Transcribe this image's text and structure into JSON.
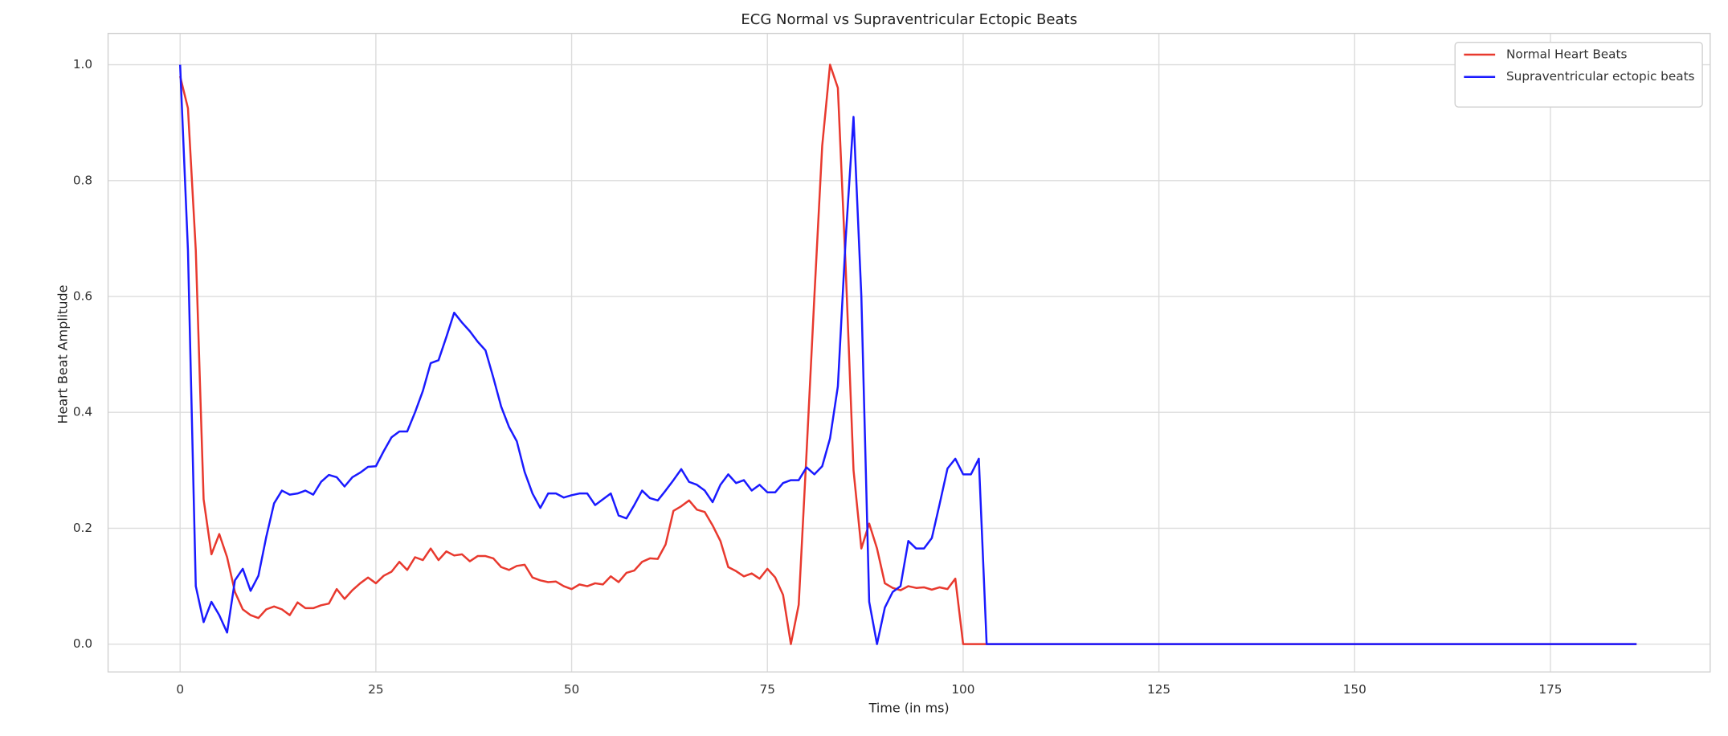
{
  "chart_data": {
    "type": "line",
    "title": "ECG Normal vs Supraventricular Ectopic Beats",
    "xlabel": "Time (in ms)",
    "ylabel": "Heart Beat Amplitude",
    "x": [
      0,
      1,
      2,
      3,
      4,
      5,
      6,
      7,
      8,
      9,
      10,
      11,
      12,
      13,
      14,
      15,
      16,
      17,
      18,
      19,
      20,
      21,
      22,
      23,
      24,
      25,
      26,
      27,
      28,
      29,
      30,
      31,
      32,
      33,
      34,
      35,
      36,
      37,
      38,
      39,
      40,
      41,
      42,
      43,
      44,
      45,
      46,
      47,
      48,
      49,
      50,
      51,
      52,
      53,
      54,
      55,
      56,
      57,
      58,
      59,
      60,
      61,
      62,
      63,
      64,
      65,
      66,
      67,
      68,
      69,
      70,
      71,
      72,
      73,
      74,
      75,
      76,
      77,
      78,
      79,
      80,
      81,
      82,
      83,
      84,
      85,
      86,
      87,
      88,
      89,
      90,
      91,
      92,
      93,
      94,
      95,
      96,
      97,
      98,
      99,
      100,
      101,
      102,
      103,
      104,
      105,
      106,
      107,
      108,
      109,
      110,
      111,
      112,
      113,
      114,
      115,
      116,
      117,
      118,
      119,
      120,
      121,
      122,
      123,
      124,
      125,
      126,
      127,
      128,
      129,
      130,
      131,
      132,
      133,
      134,
      135,
      136,
      137,
      138,
      139,
      140,
      141,
      142,
      143,
      144,
      145,
      146,
      147,
      148,
      149,
      150,
      151,
      152,
      153,
      154,
      155,
      156,
      157,
      158,
      159,
      160,
      161,
      162,
      163,
      164,
      165,
      166,
      167,
      168,
      169,
      170,
      171,
      172,
      173,
      174,
      175,
      176,
      177,
      178,
      179,
      180,
      181,
      182,
      183,
      184,
      185,
      186
    ],
    "series": [
      {
        "name": "Normal Heart Beats",
        "color": "#e8392e",
        "values": [
          0.98,
          0.925,
          0.68,
          0.25,
          0.155,
          0.19,
          0.15,
          0.09,
          0.06,
          0.05,
          0.045,
          0.06,
          0.065,
          0.06,
          0.05,
          0.072,
          0.062,
          0.062,
          0.067,
          0.07,
          0.095,
          0.078,
          0.093,
          0.105,
          0.115,
          0.105,
          0.118,
          0.125,
          0.142,
          0.128,
          0.15,
          0.145,
          0.165,
          0.145,
          0.16,
          0.153,
          0.155,
          0.143,
          0.152,
          0.152,
          0.148,
          0.133,
          0.128,
          0.135,
          0.137,
          0.115,
          0.11,
          0.107,
          0.108,
          0.1,
          0.095,
          0.103,
          0.1,
          0.105,
          0.103,
          0.117,
          0.107,
          0.123,
          0.127,
          0.142,
          0.148,
          0.147,
          0.172,
          0.23,
          0.238,
          0.248,
          0.232,
          0.228,
          0.205,
          0.178,
          0.133,
          0.126,
          0.117,
          0.122,
          0.113,
          0.13,
          0.115,
          0.085,
          0.0,
          0.068,
          0.33,
          0.6,
          0.86,
          1.0,
          0.96,
          0.65,
          0.3,
          0.165,
          0.208,
          0.165,
          0.105,
          0.097,
          0.093,
          0.1,
          0.097,
          0.098,
          0.094,
          0.098,
          0.095,
          0.113,
          0,
          0,
          0,
          0,
          0,
          0,
          0,
          0,
          0,
          0,
          0,
          0,
          0,
          0,
          0,
          0,
          0,
          0,
          0,
          0,
          0,
          0,
          0,
          0,
          0,
          0,
          0,
          0,
          0,
          0,
          0,
          0,
          0,
          0,
          0,
          0,
          0,
          0,
          0,
          0,
          0,
          0,
          0,
          0,
          0,
          0,
          0,
          0,
          0,
          0,
          0,
          0,
          0,
          0,
          0,
          0,
          0,
          0,
          0,
          0,
          0,
          0,
          0,
          0,
          0,
          0,
          0,
          0,
          0,
          0,
          0,
          0,
          0,
          0,
          0,
          0,
          0,
          0,
          0,
          0,
          0,
          0,
          0,
          0,
          0,
          0,
          0
        ]
      },
      {
        "name": "Supraventricular ectopic beats",
        "color": "#1a1aff",
        "values": [
          1.0,
          0.68,
          0.1,
          0.038,
          0.073,
          0.05,
          0.02,
          0.11,
          0.13,
          0.092,
          0.118,
          0.185,
          0.243,
          0.265,
          0.258,
          0.26,
          0.265,
          0.258,
          0.28,
          0.292,
          0.288,
          0.272,
          0.288,
          0.296,
          0.306,
          0.307,
          0.333,
          0.357,
          0.367,
          0.367,
          0.4,
          0.437,
          0.485,
          0.49,
          0.53,
          0.572,
          0.555,
          0.54,
          0.522,
          0.507,
          0.46,
          0.41,
          0.375,
          0.35,
          0.297,
          0.26,
          0.235,
          0.26,
          0.26,
          0.253,
          0.257,
          0.26,
          0.26,
          0.24,
          0.25,
          0.26,
          0.222,
          0.217,
          0.24,
          0.265,
          0.252,
          0.248,
          0.265,
          0.283,
          0.302,
          0.28,
          0.275,
          0.265,
          0.245,
          0.275,
          0.293,
          0.278,
          0.283,
          0.265,
          0.275,
          0.262,
          0.262,
          0.278,
          0.283,
          0.283,
          0.305,
          0.293,
          0.307,
          0.355,
          0.445,
          0.7,
          0.91,
          0.6,
          0.073,
          0.0,
          0.063,
          0.09,
          0.1,
          0.178,
          0.165,
          0.165,
          0.183,
          0.242,
          0.303,
          0.32,
          0.293,
          0.293,
          0.32,
          0,
          0,
          0,
          0,
          0,
          0,
          0,
          0,
          0,
          0,
          0,
          0,
          0,
          0,
          0,
          0,
          0,
          0,
          0,
          0,
          0,
          0,
          0,
          0,
          0,
          0,
          0,
          0,
          0,
          0,
          0,
          0,
          0,
          0,
          0,
          0,
          0,
          0,
          0,
          0,
          0,
          0,
          0,
          0,
          0,
          0,
          0,
          0,
          0,
          0,
          0,
          0,
          0,
          0,
          0,
          0,
          0,
          0,
          0,
          0,
          0,
          0,
          0,
          0,
          0,
          0,
          0,
          0,
          0,
          0,
          0,
          0,
          0,
          0,
          0,
          0,
          0,
          0,
          0,
          0,
          0,
          0,
          0,
          0
        ]
      }
    ],
    "xlim": [
      -9.2,
      195.4
    ],
    "ylim": [
      -0.048,
      1.054
    ],
    "xticks": [
      0,
      25,
      50,
      75,
      100,
      125,
      150,
      175
    ],
    "yticks": [
      {
        "value": 0.0,
        "label": "0.0"
      },
      0.2,
      0.4,
      0.6,
      0.8,
      {
        "value": 1.0,
        "label": "1.0"
      }
    ],
    "grid": true,
    "legend": "upper right"
  }
}
